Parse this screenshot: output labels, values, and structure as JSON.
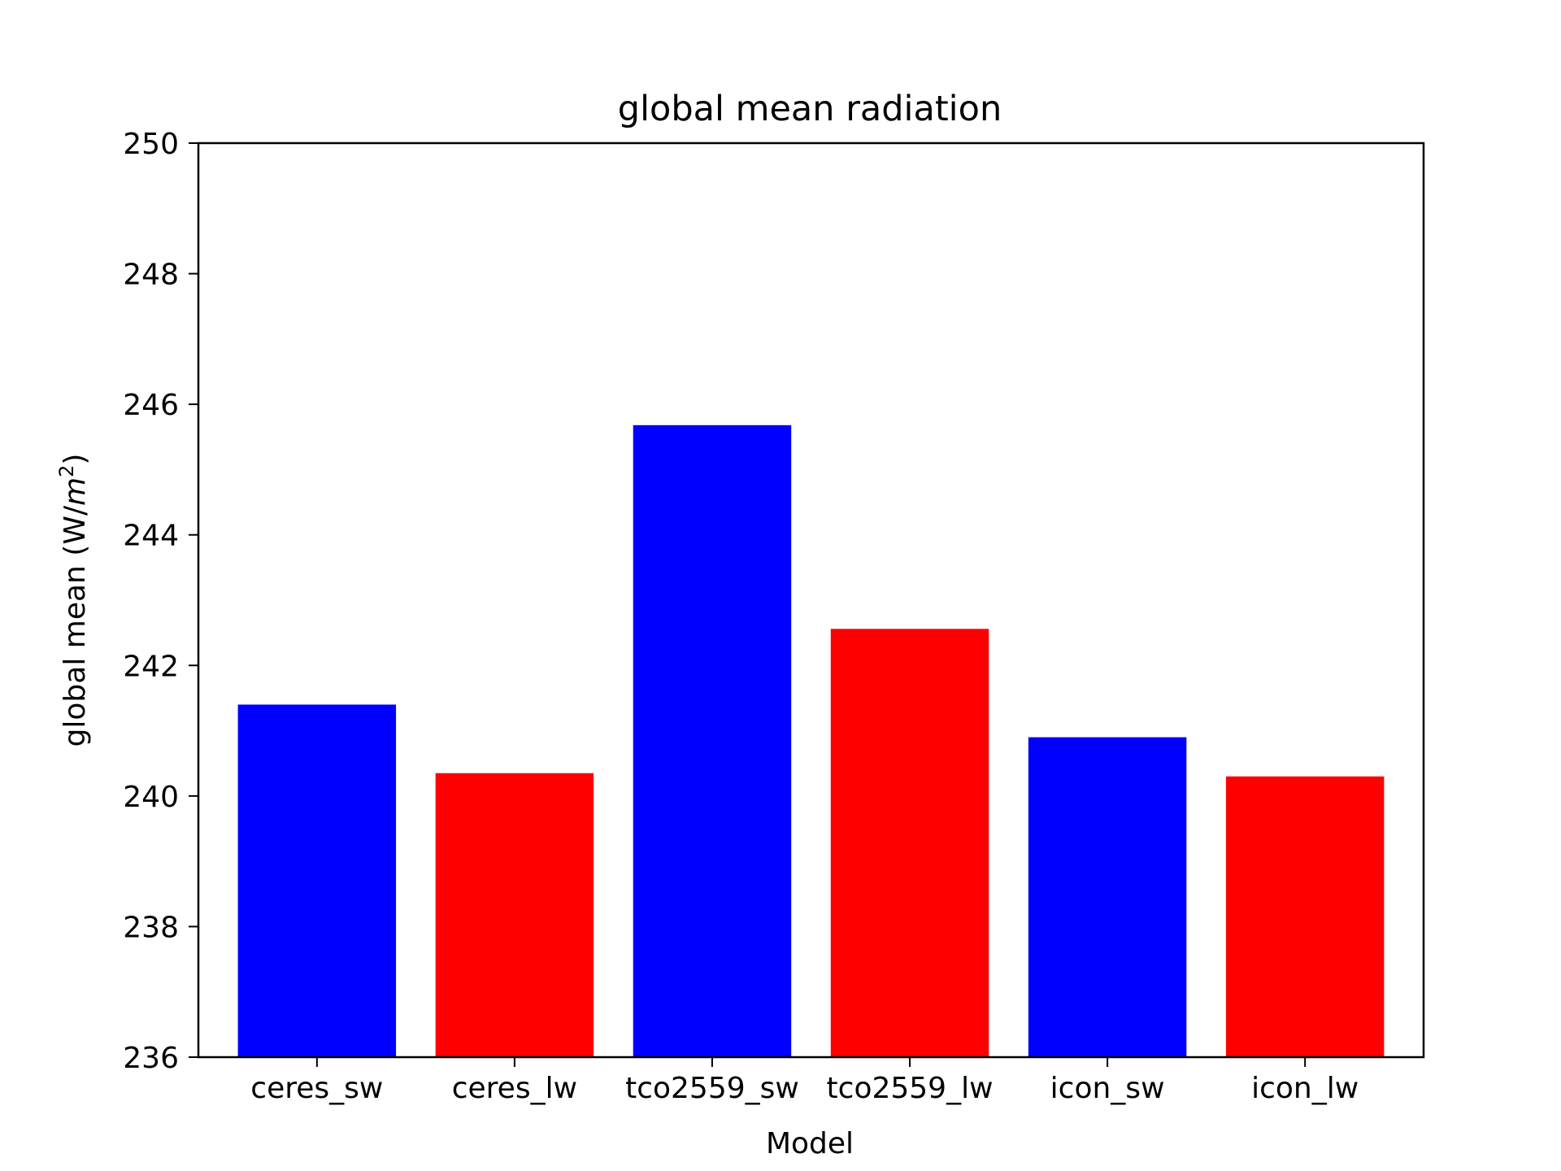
{
  "chart_data": {
    "type": "bar",
    "title": "global mean radiation",
    "xlabel": "Model",
    "ylabel": "global mean (W/m²)",
    "ylabel_parts": {
      "prefix": "global mean (W/",
      "var": "m",
      "sup": "2",
      "suffix": ")"
    },
    "categories": [
      "ceres_sw",
      "ceres_lw",
      "tco2559_sw",
      "tco2559_lw",
      "icon_sw",
      "icon_lw"
    ],
    "values": [
      241.4,
      240.35,
      245.68,
      242.56,
      240.9,
      240.3
    ],
    "colors": [
      "#0000ff",
      "#ff0000",
      "#0000ff",
      "#ff0000",
      "#0000ff",
      "#ff0000"
    ],
    "ylim": [
      236,
      250
    ],
    "yticks": [
      236,
      238,
      240,
      242,
      244,
      246,
      248,
      250
    ],
    "ytick_labels": [
      "236",
      "238",
      "240",
      "242",
      "244",
      "246",
      "248",
      "250"
    ],
    "grid": false,
    "legend": "none"
  }
}
